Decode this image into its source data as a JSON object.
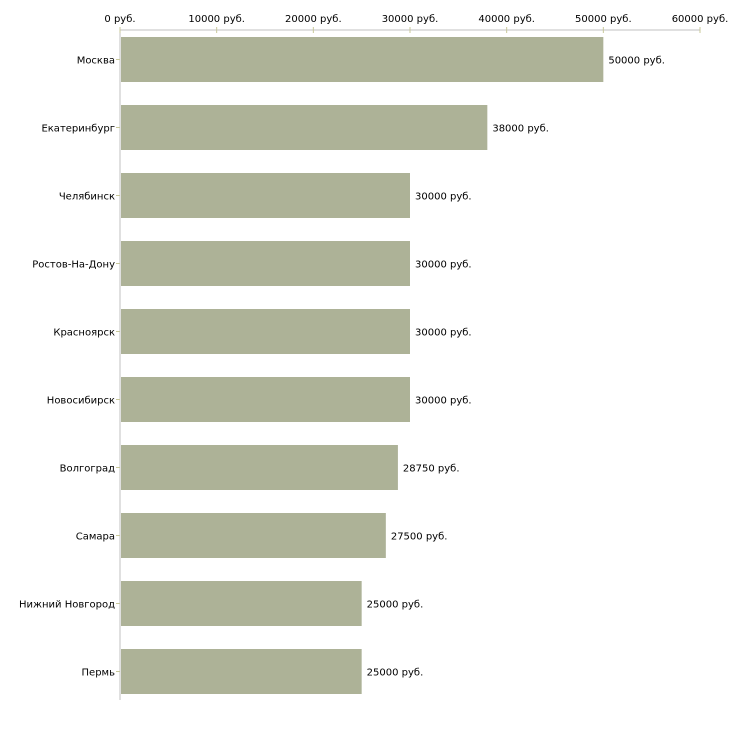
{
  "chart_data": {
    "type": "bar",
    "orientation": "horizontal",
    "title": "",
    "xlabel": "",
    "ylabel": "",
    "categories": [
      "Москва",
      "Екатеринбург",
      "Челябинск",
      "Ростов-На-Дону",
      "Красноярск",
      "Новосибирск",
      "Волгоград",
      "Самара",
      "Нижний Новгород",
      "Пермь"
    ],
    "values": [
      50000,
      38000,
      30000,
      30000,
      30000,
      30000,
      28750,
      27500,
      25000,
      25000
    ],
    "value_labels": [
      "50000 руб.",
      "38000 руб.",
      "30000 руб.",
      "30000 руб.",
      "30000 руб.",
      "30000 руб.",
      "28750 руб.",
      "27500 руб.",
      "25000 руб.",
      "25000 руб."
    ],
    "xlim": [
      0,
      60000
    ],
    "ticks": [
      0,
      10000,
      20000,
      30000,
      40000,
      50000,
      60000
    ],
    "tick_labels": [
      "0 руб.",
      "10000 руб.",
      "20000 руб.",
      "30000 руб.",
      "40000 руб.",
      "50000 руб.",
      "60000 руб."
    ],
    "axis_position": "top",
    "grid": false,
    "colors": {
      "bar": "#adb297",
      "axis": "#c0c0c0",
      "tick": "#c8c89a"
    }
  }
}
